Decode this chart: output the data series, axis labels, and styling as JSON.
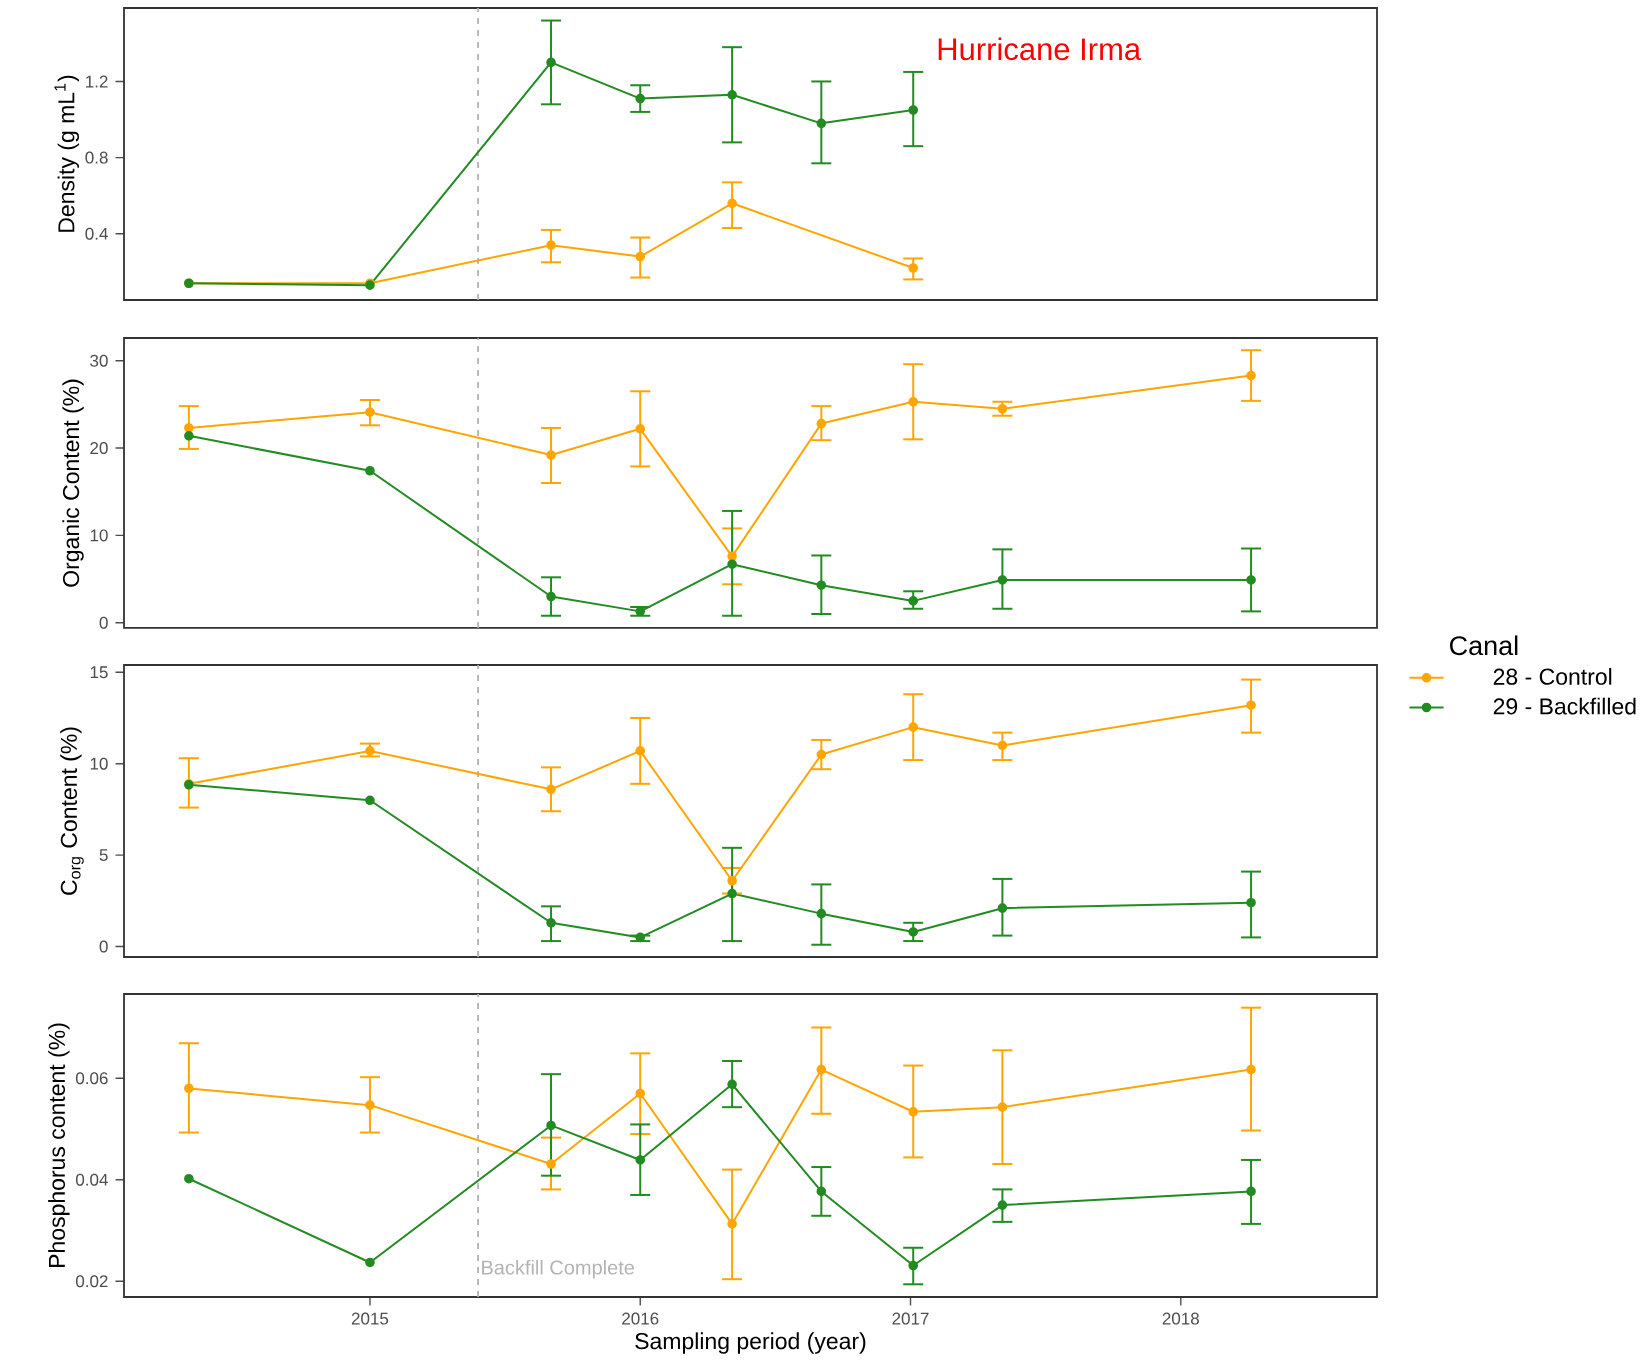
{
  "chart_data": [
    {
      "type": "line",
      "ylabel": "Density (g mL$^{1}$)",
      "annotations": [
        "Hurricane Irma"
      ],
      "xlim": [
        2014.09,
        2018.726
      ],
      "ylim": [
        0.052,
        1.586
      ],
      "yticks": [
        0.4,
        0.8,
        1.2
      ],
      "tick_labels": "y",
      "marker": "circle",
      "line_style": "solid",
      "grid": false,
      "ref_lines": [
        {
          "axis": "x",
          "value": 2015.4,
          "color": "#b3b3b3",
          "line_style": "dashed"
        }
      ],
      "series": [
        {
          "color": "#ffa500",
          "x": [
            2014.33,
            2015.0,
            2015.67,
            2016.0,
            2016.34,
            2017.01
          ],
          "values": [
            0.14,
            0.14,
            0.34,
            0.28,
            0.56,
            0.22
          ],
          "errors": [
            null,
            null,
            [
              0.25,
              0.42
            ],
            [
              0.17,
              0.38
            ],
            [
              0.43,
              0.67
            ],
            [
              0.16,
              0.27
            ]
          ]
        },
        {
          "color": "#228b22",
          "x": [
            2014.33,
            2015.0,
            2015.67,
            2016.0,
            2016.34,
            2016.67,
            2017.01
          ],
          "values": [
            0.14,
            0.13,
            1.3,
            1.11,
            1.13,
            0.98,
            1.05
          ],
          "errors": [
            null,
            null,
            [
              1.08,
              1.52
            ],
            [
              1.04,
              1.18
            ],
            [
              0.88,
              1.38
            ],
            [
              0.77,
              1.2
            ],
            [
              0.86,
              1.25
            ]
          ]
        }
      ]
    },
    {
      "type": "line",
      "ylabel": "Organic Content (%)",
      "x": [
        2014.33,
        2015.0,
        2015.67,
        2016.0,
        2016.34,
        2016.67,
        2017.01,
        2017.34,
        2018.26
      ],
      "xlim": [
        2014.09,
        2018.726
      ],
      "ylim": [
        -0.6,
        32.6
      ],
      "yticks": [
        0,
        10,
        20,
        30
      ],
      "tick_labels": "y",
      "marker": "circle",
      "line_style": "solid",
      "grid": false,
      "ref_lines": [
        {
          "axis": "x",
          "value": 2015.4,
          "color": "#b3b3b3",
          "line_style": "dashed"
        }
      ],
      "series": [
        {
          "color": "#ffa500",
          "values": [
            22.3,
            24.1,
            19.2,
            22.2,
            7.6,
            22.8,
            25.3,
            24.5,
            28.3
          ],
          "errors": [
            [
              19.9,
              24.8
            ],
            [
              22.6,
              25.5
            ],
            [
              16.0,
              22.3
            ],
            [
              17.9,
              26.5
            ],
            [
              4.4,
              10.8
            ],
            [
              20.9,
              24.8
            ],
            [
              21.0,
              29.6
            ],
            [
              23.7,
              25.3
            ],
            [
              25.4,
              31.2
            ]
          ]
        },
        {
          "color": "#228b22",
          "values": [
            21.4,
            17.4,
            3.0,
            1.3,
            6.7,
            4.3,
            2.5,
            4.9,
            4.9
          ],
          "errors": [
            null,
            null,
            [
              0.8,
              5.2
            ],
            [
              0.8,
              1.8
            ],
            [
              0.8,
              12.8
            ],
            [
              1.0,
              7.7
            ],
            [
              1.6,
              3.6
            ],
            [
              1.6,
              8.4
            ],
            [
              1.3,
              8.5
            ]
          ]
        }
      ]
    },
    {
      "type": "line",
      "ylabel": "C$_{org}$ Content (%)",
      "legend_title": "Canal",
      "legend": "right",
      "x": [
        2014.33,
        2015.0,
        2015.67,
        2016.0,
        2016.34,
        2016.67,
        2017.01,
        2017.34,
        2018.26
      ],
      "xlim": [
        2014.09,
        2018.726
      ],
      "ylim": [
        -0.57,
        15.4
      ],
      "yticks": [
        0,
        5,
        10,
        15
      ],
      "tick_labels": "y",
      "marker": "circle",
      "line_style": "solid",
      "grid": false,
      "ref_lines": [
        {
          "axis": "x",
          "value": 2015.4,
          "color": "#b3b3b3",
          "line_style": "dashed"
        }
      ],
      "series": [
        {
          "name": "28 - Control",
          "color": "#ffa500",
          "values": [
            8.9,
            10.7,
            8.6,
            10.7,
            3.6,
            10.5,
            12.0,
            11.0,
            13.2
          ],
          "errors": [
            [
              7.6,
              10.3
            ],
            [
              10.4,
              11.1
            ],
            [
              7.4,
              9.8
            ],
            [
              8.9,
              12.5
            ],
            [
              2.9,
              4.3
            ],
            [
              9.7,
              11.3
            ],
            [
              10.2,
              13.8
            ],
            [
              10.2,
              11.7
            ],
            [
              11.7,
              14.6
            ]
          ]
        },
        {
          "name": "29 - Backfilled",
          "color": "#228b22",
          "values": [
            8.85,
            8.0,
            1.3,
            0.5,
            2.9,
            1.8,
            0.8,
            2.1,
            2.4
          ],
          "errors": [
            null,
            null,
            [
              0.3,
              2.2
            ],
            [
              0.3,
              0.6
            ],
            [
              0.3,
              5.4
            ],
            [
              0.1,
              3.4
            ],
            [
              0.3,
              1.3
            ],
            [
              0.6,
              3.7
            ],
            [
              0.5,
              4.1
            ]
          ]
        }
      ]
    },
    {
      "type": "line",
      "ylabel": "Phosphorus content (%)",
      "xlabel": "Sampling period (year)",
      "x": [
        2014.33,
        2015.0,
        2015.67,
        2016.0,
        2016.34,
        2016.67,
        2017.01,
        2017.34,
        2018.26
      ],
      "xlim": [
        2014.09,
        2018.726
      ],
      "xticks": [
        2015,
        2016,
        2017,
        2018
      ],
      "ylim": [
        0.0169,
        0.0766
      ],
      "yticks": [
        0.02,
        0.04,
        0.06
      ],
      "marker": "circle",
      "line_style": "solid",
      "grid": false,
      "ref_lines": [
        {
          "axis": "x",
          "value": 2015.4,
          "label": "Backfill Complete",
          "color": "#b3b3b3",
          "line_style": "dashed"
        }
      ],
      "series": [
        {
          "color": "#ffa500",
          "values": [
            0.058,
            0.0547,
            0.0431,
            0.057,
            0.0313,
            0.0617,
            0.0534,
            0.0543,
            0.0617
          ],
          "errors": [
            [
              0.0493,
              0.0669
            ],
            [
              0.0493,
              0.0602
            ],
            [
              0.0381,
              0.0483
            ],
            [
              0.049,
              0.0649
            ],
            [
              0.0204,
              0.042
            ],
            [
              0.053,
              0.07
            ],
            [
              0.0444,
              0.0625
            ],
            [
              0.0431,
              0.0655
            ],
            [
              0.0497,
              0.0739
            ]
          ]
        },
        {
          "color": "#228b22",
          "values": [
            0.0402,
            0.0237,
            0.0507,
            0.0439,
            0.0588,
            0.0377,
            0.0231,
            0.035,
            0.0377
          ],
          "errors": [
            null,
            null,
            [
              0.0408,
              0.0608
            ],
            [
              0.037,
              0.0509
            ],
            [
              0.0543,
              0.0634
            ],
            [
              0.0329,
              0.0425
            ],
            [
              0.0194,
              0.0266
            ],
            [
              0.0317,
              0.0381
            ],
            [
              0.0313,
              0.0439
            ]
          ]
        }
      ]
    }
  ]
}
